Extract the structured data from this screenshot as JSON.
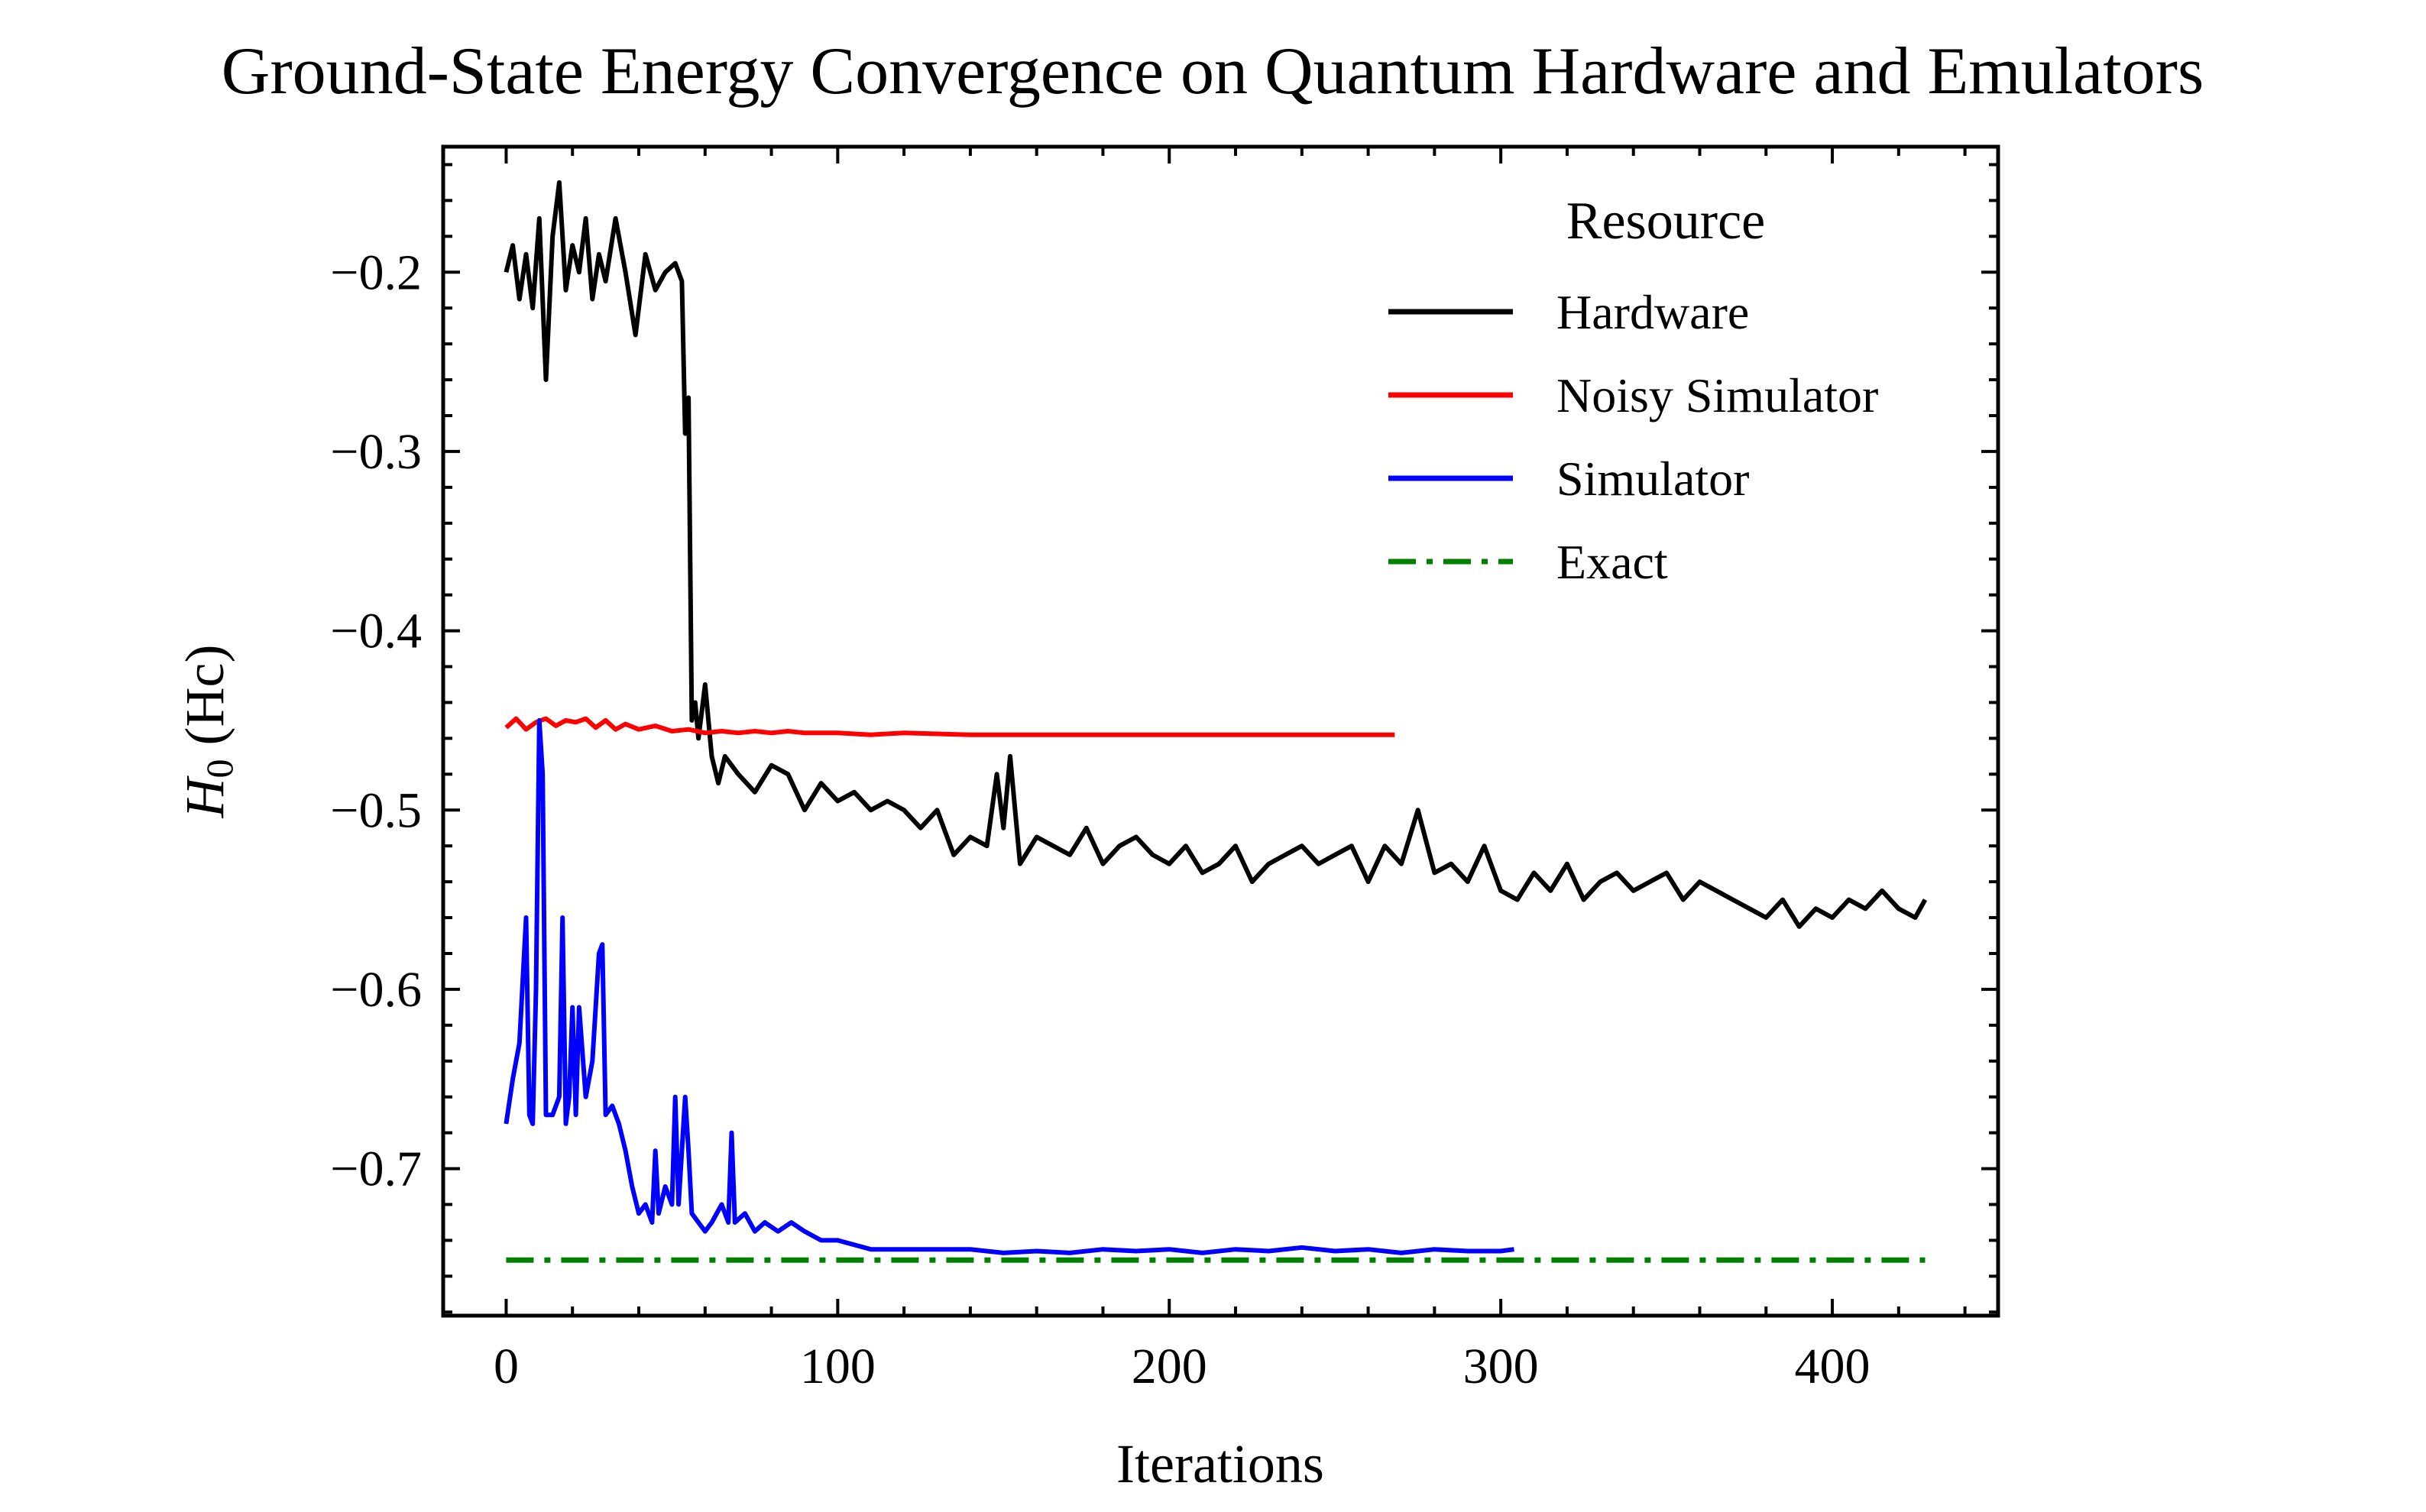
{
  "chart_data": {
    "type": "line",
    "title": "Ground-State Energy Convergence on Quantum Hardware and Emulators",
    "xlabel": "Iterations",
    "ylabel": {
      "symbol": "H",
      "subscript": "0",
      "unit": "(Hc)"
    },
    "xlim": [
      -19,
      450
    ],
    "ylim": [
      -0.782,
      -0.13
    ],
    "xticks": [
      0,
      100,
      200,
      300,
      400
    ],
    "xtick_labels": [
      "0",
      "100",
      "200",
      "300",
      "400"
    ],
    "yticks": [
      -0.2,
      -0.3,
      -0.4,
      -0.5,
      -0.6,
      -0.7
    ],
    "ytick_labels": [
      "−0.2",
      "−0.3",
      "−0.4",
      "−0.5",
      "−0.6",
      "−0.7"
    ],
    "legend": {
      "title": "Resource",
      "placement": "top-right",
      "entries": [
        "Hardware",
        "Noisy Simulator",
        "Simulator",
        "Exact"
      ]
    },
    "series": [
      {
        "name": "Hardware",
        "color": "#000000",
        "style": "solid",
        "x": [
          0,
          2,
          4,
          6,
          8,
          10,
          12,
          14,
          16,
          18,
          20,
          22,
          24,
          26,
          28,
          30,
          33,
          36,
          39,
          42,
          45,
          48,
          51,
          53,
          54,
          55,
          56,
          57,
          58,
          60,
          62,
          64,
          66,
          70,
          75,
          80,
          85,
          90,
          95,
          100,
          105,
          110,
          115,
          120,
          125,
          130,
          135,
          140,
          145,
          148,
          150,
          152,
          155,
          160,
          165,
          170,
          175,
          180,
          185,
          190,
          195,
          200,
          205,
          210,
          215,
          220,
          225,
          230,
          235,
          240,
          245,
          250,
          255,
          260,
          265,
          270,
          275,
          280,
          285,
          290,
          295,
          300,
          305,
          310,
          315,
          320,
          325,
          330,
          335,
          340,
          345,
          350,
          355,
          360,
          365,
          370,
          375,
          380,
          385,
          390,
          395,
          400,
          405,
          410,
          415,
          420,
          425,
          428
        ],
        "y": [
          -0.2,
          -0.185,
          -0.215,
          -0.19,
          -0.22,
          -0.17,
          -0.26,
          -0.18,
          -0.15,
          -0.21,
          -0.185,
          -0.2,
          -0.17,
          -0.215,
          -0.19,
          -0.205,
          -0.17,
          -0.2,
          -0.235,
          -0.19,
          -0.21,
          -0.2,
          -0.195,
          -0.205,
          -0.29,
          -0.27,
          -0.45,
          -0.44,
          -0.46,
          -0.43,
          -0.47,
          -0.485,
          -0.47,
          -0.48,
          -0.49,
          -0.475,
          -0.48,
          -0.5,
          -0.485,
          -0.495,
          -0.49,
          -0.5,
          -0.495,
          -0.5,
          -0.51,
          -0.5,
          -0.525,
          -0.515,
          -0.52,
          -0.48,
          -0.51,
          -0.47,
          -0.53,
          -0.515,
          -0.52,
          -0.525,
          -0.51,
          -0.53,
          -0.52,
          -0.515,
          -0.525,
          -0.53,
          -0.52,
          -0.535,
          -0.53,
          -0.52,
          -0.54,
          -0.53,
          -0.525,
          -0.52,
          -0.53,
          -0.525,
          -0.52,
          -0.54,
          -0.52,
          -0.53,
          -0.5,
          -0.535,
          -0.53,
          -0.54,
          -0.52,
          -0.545,
          -0.55,
          -0.535,
          -0.545,
          -0.53,
          -0.55,
          -0.54,
          -0.535,
          -0.545,
          -0.54,
          -0.535,
          -0.55,
          -0.54,
          -0.545,
          -0.55,
          -0.555,
          -0.56,
          -0.55,
          -0.565,
          -0.555,
          -0.56,
          -0.55,
          -0.555,
          -0.545,
          -0.555,
          -0.56,
          -0.55
        ]
      },
      {
        "name": "Noisy Simulator",
        "color": "#ff0000",
        "style": "solid",
        "x": [
          0,
          3,
          6,
          9,
          12,
          15,
          18,
          21,
          24,
          27,
          30,
          33,
          36,
          40,
          45,
          50,
          55,
          60,
          65,
          70,
          75,
          80,
          85,
          90,
          100,
          110,
          120,
          140,
          160,
          180,
          200,
          220,
          240,
          260,
          268
        ],
        "y": [
          -0.454,
          -0.449,
          -0.455,
          -0.451,
          -0.449,
          -0.453,
          -0.45,
          -0.451,
          -0.449,
          -0.454,
          -0.45,
          -0.455,
          -0.452,
          -0.455,
          -0.453,
          -0.456,
          -0.455,
          -0.457,
          -0.456,
          -0.457,
          -0.456,
          -0.457,
          -0.456,
          -0.457,
          -0.457,
          -0.458,
          -0.457,
          -0.458,
          -0.458,
          -0.458,
          -0.458,
          -0.458,
          -0.458,
          -0.458,
          -0.458
        ]
      },
      {
        "name": "Simulator",
        "color": "#0000ff",
        "style": "solid",
        "x": [
          0,
          2,
          4,
          6,
          7,
          8,
          9,
          10,
          11,
          12,
          14,
          16,
          17,
          18,
          19,
          20,
          21,
          22,
          24,
          26,
          28,
          29,
          30,
          32,
          34,
          36,
          38,
          40,
          42,
          44,
          45,
          46,
          48,
          50,
          51,
          52,
          54,
          55,
          56,
          58,
          60,
          62,
          65,
          67,
          68,
          69,
          72,
          75,
          78,
          82,
          86,
          90,
          95,
          100,
          110,
          120,
          130,
          140,
          150,
          160,
          170,
          180,
          190,
          200,
          210,
          220,
          230,
          240,
          250,
          260,
          270,
          280,
          290,
          300,
          304
        ],
        "y": [
          -0.675,
          -0.65,
          -0.63,
          -0.56,
          -0.67,
          -0.675,
          -0.6,
          -0.45,
          -0.48,
          -0.67,
          -0.67,
          -0.66,
          -0.56,
          -0.675,
          -0.66,
          -0.61,
          -0.67,
          -0.61,
          -0.66,
          -0.64,
          -0.58,
          -0.575,
          -0.67,
          -0.665,
          -0.675,
          -0.69,
          -0.71,
          -0.725,
          -0.72,
          -0.73,
          -0.69,
          -0.725,
          -0.71,
          -0.72,
          -0.66,
          -0.72,
          -0.66,
          -0.69,
          -0.725,
          -0.73,
          -0.735,
          -0.73,
          -0.72,
          -0.73,
          -0.68,
          -0.73,
          -0.725,
          -0.735,
          -0.73,
          -0.735,
          -0.73,
          -0.735,
          -0.74,
          -0.74,
          -0.745,
          -0.745,
          -0.745,
          -0.745,
          -0.747,
          -0.746,
          -0.747,
          -0.745,
          -0.746,
          -0.745,
          -0.747,
          -0.745,
          -0.746,
          -0.744,
          -0.746,
          -0.745,
          -0.747,
          -0.745,
          -0.746,
          -0.746,
          -0.745
        ]
      },
      {
        "name": "Exact",
        "color": "#008000",
        "style": "dashdot",
        "x": [
          0,
          428
        ],
        "y": [
          -0.751,
          -0.751
        ]
      }
    ]
  }
}
